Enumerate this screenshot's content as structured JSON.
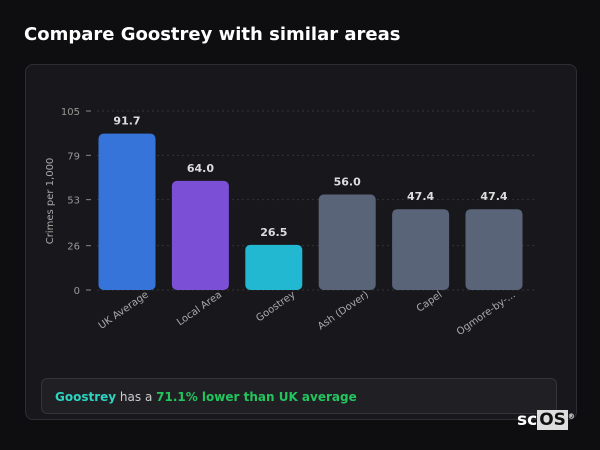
{
  "title": "Compare Goostrey with similar areas",
  "chart_data": {
    "type": "bar",
    "ylabel": "Crimes per 1,000",
    "ylim": [
      0,
      105
    ],
    "yticks": [
      0,
      26,
      53,
      79,
      105
    ],
    "categories": [
      "UK Average",
      "Local Area",
      "Goostrey",
      "Ash (Dover)",
      "Capel",
      "Ogmore-by-..."
    ],
    "values": [
      91.7,
      64.0,
      26.5,
      56.0,
      47.4,
      47.4
    ],
    "value_labels": [
      "91.7",
      "64.0",
      "26.5",
      "56.0",
      "47.4",
      "47.4"
    ],
    "colors": [
      "#3674d9",
      "#7b4fd6",
      "#22b8d1",
      "#5a6478",
      "#5a6478",
      "#5a6478"
    ],
    "grid": true
  },
  "footer": {
    "place": "Goostrey",
    "has": " has a ",
    "stat": "71.1% lower than UK average"
  },
  "logo": "scOS"
}
